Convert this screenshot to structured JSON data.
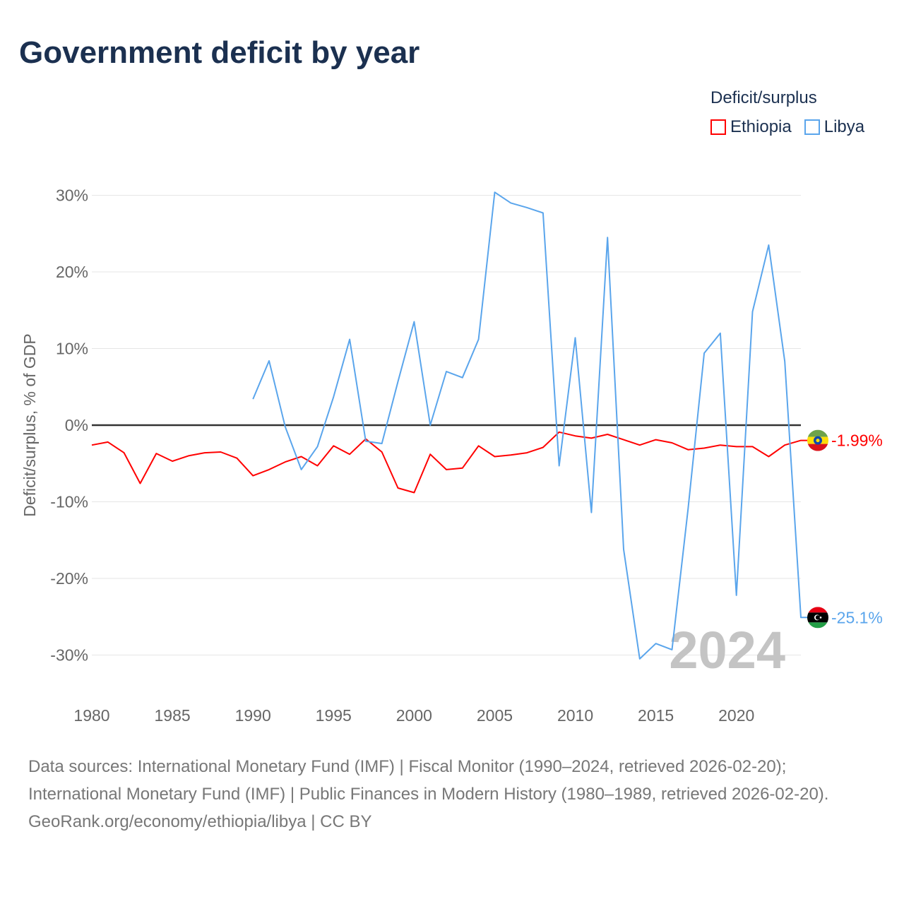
{
  "title": "Government deficit by year",
  "legend": {
    "title": "Deficit/surplus",
    "items": [
      {
        "label": "Ethiopia",
        "color": "#ff0000"
      },
      {
        "label": "Libya",
        "color": "#5aa5ec"
      }
    ]
  },
  "chart_data": {
    "type": "line",
    "title": "Government deficit by year",
    "xlabel": "",
    "ylabel": "Deficit/surplus, % of GDP",
    "xlim": [
      1980,
      2024
    ],
    "ylim": [
      -35,
      35
    ],
    "xticks": [
      "1980",
      "1985",
      "1990",
      "1995",
      "2000",
      "2005",
      "2010",
      "2015",
      "2020"
    ],
    "yticks": [
      "30%",
      "20%",
      "10%",
      "0%",
      "-10%",
      "-20%",
      "-30%"
    ],
    "grid": true,
    "legend_position": "top-right",
    "current_year_label": "2024",
    "series": [
      {
        "name": "Ethiopia",
        "color": "#ff0000",
        "end_label": "-1.99%",
        "start_year": 1980,
        "values": [
          -2.6,
          -2.2,
          -3.6,
          -7.6,
          -3.7,
          -4.7,
          -4.0,
          -3.6,
          -3.5,
          -4.3,
          -6.6,
          -5.8,
          -4.8,
          -4.1,
          -5.3,
          -2.7,
          -3.8,
          -1.8,
          -3.5,
          -8.2,
          -8.8,
          -3.8,
          -5.8,
          -5.6,
          -2.7,
          -4.1,
          -3.9,
          -3.6,
          -2.9,
          -0.9,
          -1.4,
          -1.7,
          -1.2,
          -1.9,
          -2.6,
          -1.9,
          -2.3,
          -3.2,
          -3.0,
          -2.6,
          -2.8,
          -2.8,
          -4.1,
          -2.6,
          -1.99
        ]
      },
      {
        "name": "Libya",
        "color": "#5aa5ec",
        "end_label": "-25.1%",
        "start_year": 1990,
        "values": [
          3.4,
          8.4,
          -0.2,
          -5.8,
          -2.8,
          3.7,
          11.2,
          -2.1,
          -2.4,
          5.7,
          13.5,
          0.0,
          7.0,
          6.2,
          11.2,
          30.4,
          29.0,
          28.4,
          27.7,
          -5.3,
          11.4,
          -11.4,
          24.5,
          -16.2,
          -30.5,
          -28.5,
          -29.3,
          -10.9,
          9.4,
          12.0,
          -22.2,
          14.8,
          23.5,
          8.3,
          -25.1
        ]
      }
    ]
  },
  "footer": {
    "sources": "Data sources: International Monetary Fund (IMF) | Fiscal Monitor (1990–2024, retrieved 2026-02-20); International Monetary Fund (IMF) | Public Finances in Modern History (1980–1989, retrieved 2026-02-20).",
    "link": "GeoRank.org/economy/ethiopia/libya | CC BY"
  }
}
